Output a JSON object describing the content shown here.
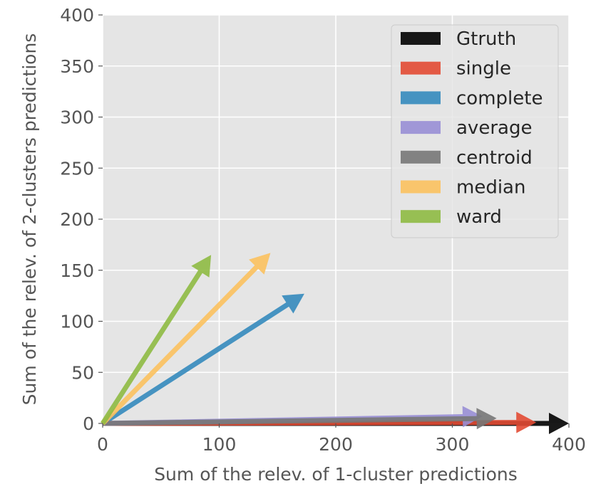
{
  "chart_data": {
    "type": "quiver",
    "xlabel": "Sum of the relev. of 1-cluster predictions",
    "ylabel": "Sum of the relev. of 2-clusters predictions",
    "xlim": [
      0,
      400
    ],
    "ylim": [
      0,
      400
    ],
    "xticks": [
      "0",
      "100",
      "200",
      "300",
      "400"
    ],
    "yticks": [
      "0",
      "50",
      "100",
      "150",
      "200",
      "250",
      "300",
      "350",
      "400"
    ],
    "grid": true,
    "legend_position": "top-right",
    "series": [
      {
        "name": "Gtruth",
        "color": "#000000",
        "x0": 0,
        "y0": 0,
        "x": 400,
        "y": 0
      },
      {
        "name": "single",
        "color": "#E24A33",
        "x0": 0,
        "y0": 0,
        "x": 372,
        "y": 1
      },
      {
        "name": "complete",
        "color": "#348ABD",
        "x0": 0,
        "y0": 0,
        "x": 173,
        "y": 127
      },
      {
        "name": "average",
        "color": "#988ED5",
        "x0": 0,
        "y0": 0,
        "x": 326,
        "y": 7
      },
      {
        "name": "centroid",
        "color": "#777777",
        "x0": 0,
        "y0": 0,
        "x": 338,
        "y": 5
      },
      {
        "name": "median",
        "color": "#FBC15E",
        "x0": 0,
        "y0": 0,
        "x": 144,
        "y": 167
      },
      {
        "name": "ward",
        "color": "#8EBA42",
        "x0": 0,
        "y0": 0,
        "x": 93,
        "y": 165
      }
    ]
  }
}
